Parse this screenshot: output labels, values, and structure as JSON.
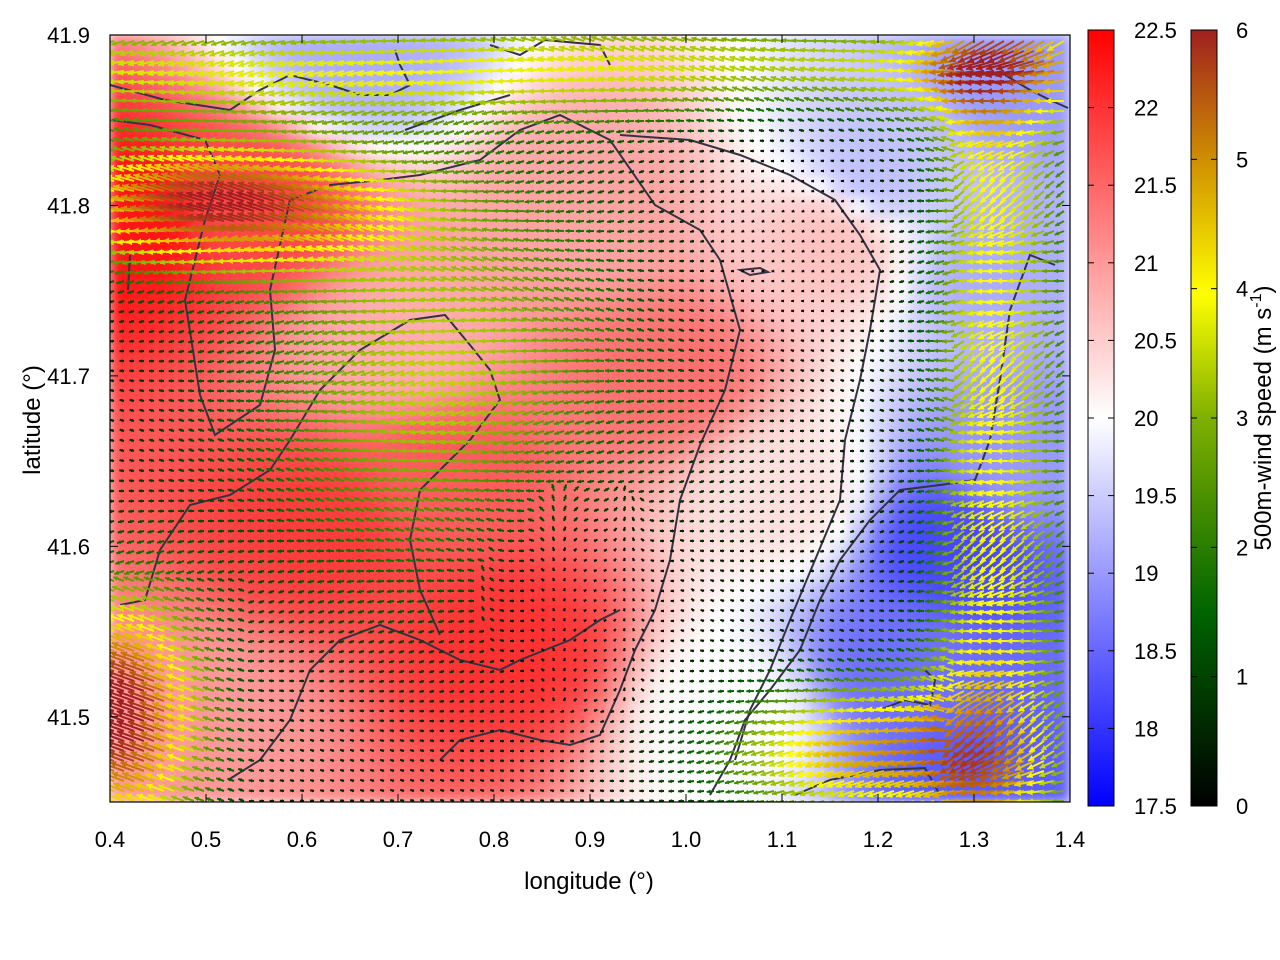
{
  "chart_data": {
    "type": "heatmap",
    "xlabel": "longitude (°)",
    "ylabel": "latitude (°)",
    "xlim": [
      0.4,
      1.4
    ],
    "ylim": [
      41.45,
      41.9
    ],
    "xticks": [
      "0.4",
      "0.5",
      "0.6",
      "0.7",
      "0.8",
      "0.9",
      "1.0",
      "1.1",
      "1.2",
      "1.3",
      "1.4"
    ],
    "yticks": [
      "41.5",
      "41.6",
      "41.7",
      "41.8",
      "41.9"
    ],
    "temperature_colorbar": {
      "range": [
        17.5,
        22.5
      ],
      "ticks": [
        "17.5",
        "18",
        "18.5",
        "19",
        "19.5",
        "20",
        "20.5",
        "21",
        "21.5",
        "22",
        "22.5"
      ],
      "colors": [
        "#0000ff",
        "#ffffff",
        "#ff0000"
      ]
    },
    "wind_colorbar": {
      "label_main": "500m-wind speed (m s",
      "label_sup": "-1",
      "label_end": ")",
      "range": [
        0,
        6
      ],
      "ticks": [
        "0",
        "1",
        "2",
        "3",
        "4",
        "5",
        "6"
      ],
      "colors": [
        "#000000",
        "#006400",
        "#7fb000",
        "#ffff00",
        "#d09000",
        "#a02020"
      ]
    },
    "temperature_field_description": [
      {
        "lon": 0.42,
        "lat": 41.79,
        "value": 22.3
      },
      {
        "lon": 0.55,
        "lat": 41.8,
        "value": 21.8
      },
      {
        "lon": 0.62,
        "lat": 41.61,
        "value": 21.9
      },
      {
        "lon": 0.82,
        "lat": 41.54,
        "value": 22.0
      },
      {
        "lon": 0.75,
        "lat": 41.64,
        "value": 21.6
      },
      {
        "lon": 0.98,
        "lat": 41.7,
        "value": 21.4
      },
      {
        "lon": 0.9,
        "lat": 41.8,
        "value": 20.9
      },
      {
        "lon": 1.15,
        "lat": 41.78,
        "value": 20.6
      },
      {
        "lon": 1.2,
        "lat": 41.82,
        "value": 19.4
      },
      {
        "lon": 1.33,
        "lat": 41.76,
        "value": 19.2
      },
      {
        "lon": 1.35,
        "lat": 41.65,
        "value": 19.0
      },
      {
        "lon": 1.28,
        "lat": 41.6,
        "value": 18.2
      },
      {
        "lon": 1.22,
        "lat": 41.53,
        "value": 18.6
      },
      {
        "lon": 1.3,
        "lat": 41.46,
        "value": 18.4
      },
      {
        "lon": 1.36,
        "lat": 41.88,
        "value": 19.0
      },
      {
        "lon": 0.66,
        "lat": 41.89,
        "value": 19.2
      },
      {
        "lon": 1.05,
        "lat": 41.5,
        "value": 20.0
      },
      {
        "lon": 0.5,
        "lat": 41.5,
        "value": 21.0
      },
      {
        "lon": 0.7,
        "lat": 41.72,
        "value": 20.8
      },
      {
        "lon": 1.1,
        "lat": 41.63,
        "value": 20.3
      }
    ]
  }
}
